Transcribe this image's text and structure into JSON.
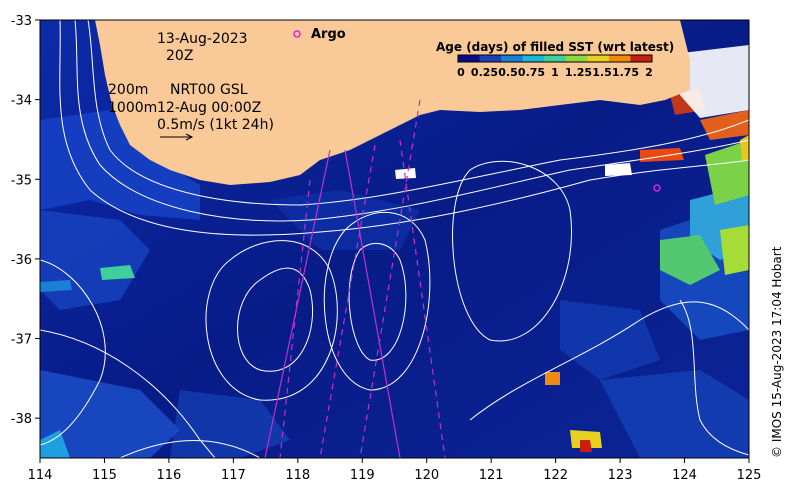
{
  "map": {
    "longitude_ticks": [
      "114",
      "115",
      "116",
      "117",
      "118",
      "119",
      "120",
      "121",
      "122",
      "123",
      "124",
      "125"
    ],
    "latitude_ticks": [
      "-33",
      "-34",
      "-35",
      "-36",
      "-37",
      "-38"
    ],
    "lon_range": [
      114,
      125
    ],
    "lat_range": [
      -38.5,
      -33
    ]
  },
  "annotations": {
    "date": "13-Aug-2023",
    "time": "20Z",
    "isobath_200": "200m",
    "product": "NRT00 GSL",
    "isobath_1000": "1000m",
    "analysis_time": "12-Aug 00:00Z",
    "velocity_scale": "0.5m/s (1kt 24h)",
    "argo_label": "Argo"
  },
  "legend": {
    "title": "Age (days) of filled SST (wrt latest)",
    "ticks": [
      "0",
      "0.25",
      "0.5",
      "0.75",
      "1",
      "1.25",
      "1.5",
      "1.75",
      "2"
    ],
    "colors": [
      "#0a0a8a",
      "#1d3fb8",
      "#1a7fd6",
      "#17b8d8",
      "#3ecf9a",
      "#8fd640",
      "#e8d020",
      "#f08a10",
      "#c81e10"
    ]
  },
  "credit": "© IMOS 15-Aug-2023 17:04 Hobart",
  "colors": {
    "land": "#f9c997",
    "ocean_base": "#0a1f8e",
    "argo_marker": "#e020e0",
    "contour": "#ffffff",
    "track": "#c030d0"
  }
}
